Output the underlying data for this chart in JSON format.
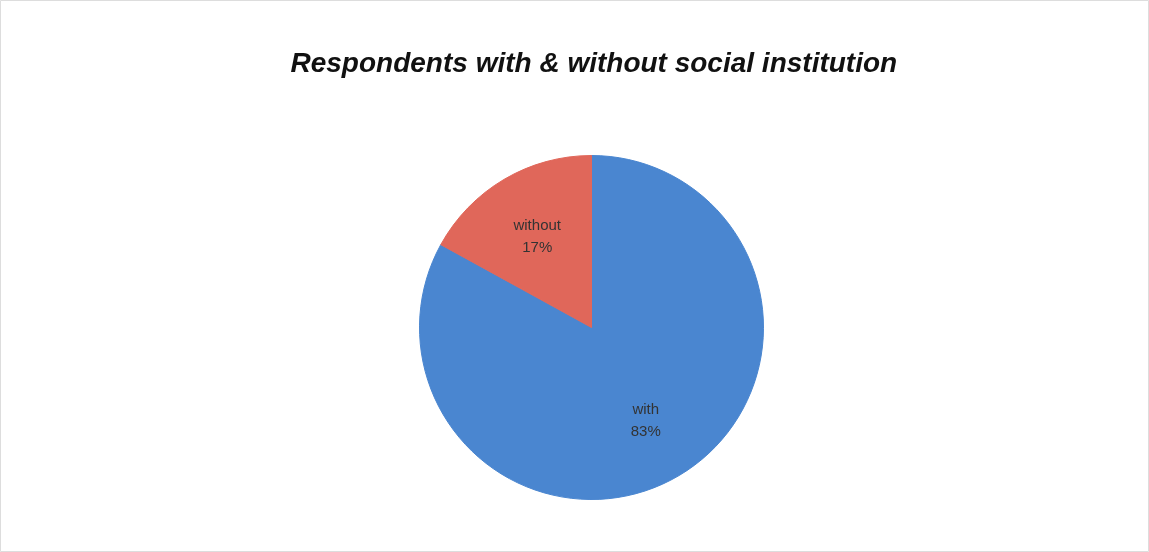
{
  "chart_data": {
    "type": "pie",
    "title": "Respondents with & without  social institution",
    "categories": [
      "with",
      "without"
    ],
    "values": [
      83,
      17
    ],
    "colors": [
      "#4a86d0",
      "#e0675a"
    ],
    "value_labels": [
      "83%",
      "17%"
    ]
  }
}
